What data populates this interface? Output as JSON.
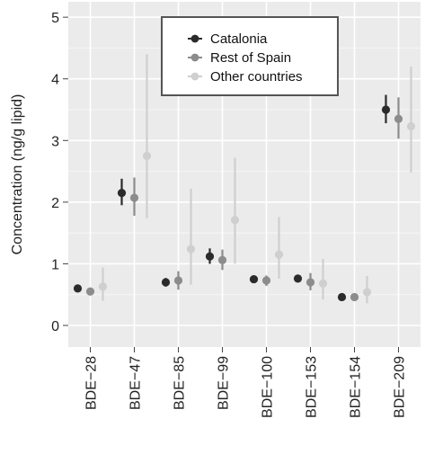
{
  "chart_data": {
    "type": "scatter",
    "subtype": "dot-with-error-bars",
    "title": "",
    "xlabel": "",
    "ylabel": "Concentration (ng/g lipid)",
    "ylim": [
      -0.35,
      5.25
    ],
    "yticks": [
      0,
      1,
      2,
      3,
      4,
      5
    ],
    "grid": true,
    "legend_position": "top-center",
    "categories": [
      "BDE−28",
      "BDE−47",
      "BDE−85",
      "BDE−99",
      "BDE−100",
      "BDE−153",
      "BDE−154",
      "BDE−209"
    ],
    "series": [
      {
        "name": "Catalonia",
        "color": "#2b2b2b",
        "values": [
          0.6,
          2.15,
          0.7,
          1.12,
          0.75,
          0.76,
          0.46,
          3.5
        ],
        "lower": [
          0.57,
          1.95,
          0.63,
          1.0,
          0.7,
          0.7,
          0.43,
          3.28
        ],
        "upper": [
          0.63,
          2.38,
          0.77,
          1.25,
          0.8,
          0.82,
          0.49,
          3.74
        ]
      },
      {
        "name": "Rest of Spain",
        "color": "#8c8c8c",
        "values": [
          0.55,
          2.07,
          0.73,
          1.06,
          0.73,
          0.7,
          0.46,
          3.35
        ],
        "lower": [
          0.5,
          1.78,
          0.58,
          0.9,
          0.64,
          0.57,
          0.42,
          3.03
        ],
        "upper": [
          0.6,
          2.4,
          0.88,
          1.23,
          0.81,
          0.85,
          0.5,
          3.7
        ]
      },
      {
        "name": "Other countries",
        "color": "#cfcfcf",
        "values": [
          0.63,
          2.75,
          1.24,
          1.71,
          1.15,
          0.68,
          0.54,
          3.23
        ],
        "lower": [
          0.4,
          1.74,
          0.66,
          1.0,
          0.76,
          0.42,
          0.36,
          2.48
        ],
        "upper": [
          0.94,
          4.4,
          2.22,
          2.72,
          1.76,
          1.08,
          0.8,
          4.2
        ]
      }
    ]
  }
}
